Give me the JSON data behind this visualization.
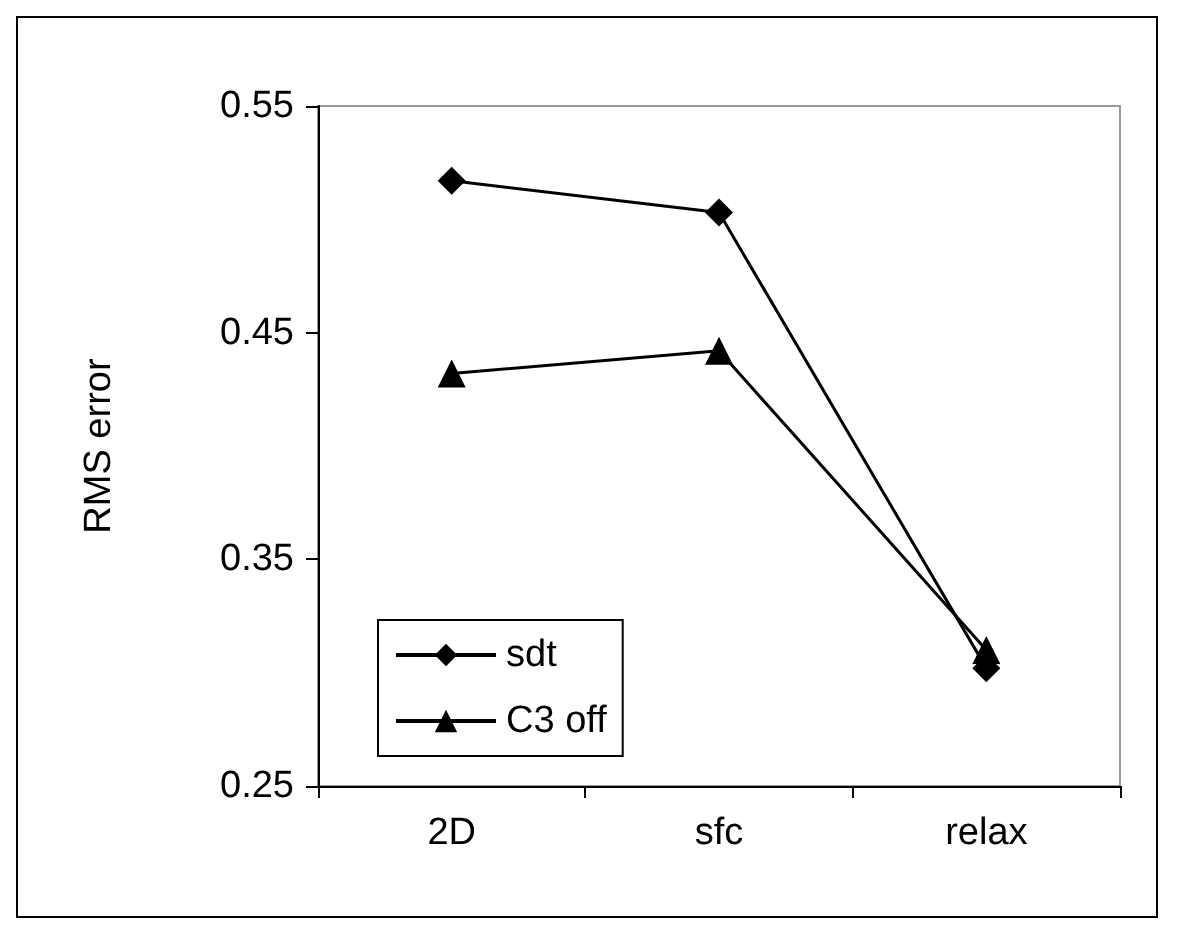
{
  "chart_data": {
    "type": "line",
    "ylabel": "RMS error",
    "categories": [
      "2D",
      "sfc",
      "relax"
    ],
    "series": [
      {
        "name": "sdt",
        "color": "#000000",
        "marker": "diamond",
        "values": [
          0.517,
          0.503,
          0.302
        ]
      },
      {
        "name": "C3 off",
        "color": "#000000",
        "marker": "triangle",
        "values": [
          0.432,
          0.442,
          0.31
        ]
      }
    ],
    "ylim": [
      0.25,
      0.55
    ],
    "yticks": [
      0.25,
      0.35,
      0.45,
      0.55
    ],
    "grid": false,
    "legend": "bottom left",
    "line_style": "solid"
  }
}
